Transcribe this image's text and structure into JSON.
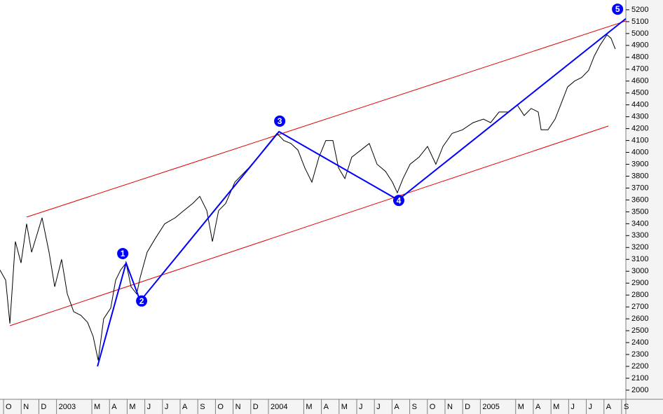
{
  "chart_data": {
    "type": "line",
    "x": [
      -0.2,
      0.12,
      0.36,
      0.67,
      0.99,
      1.31,
      1.59,
      2.18,
      2.58,
      2.9,
      3.29,
      3.61,
      3.97,
      4.37,
      4.76,
      5.08,
      5.36,
      5.67,
      6.07,
      6.35,
      6.63,
      6.94,
      7.22,
      7.54,
      7.74,
      8.13,
      8.61,
      9.13,
      9.72,
      10.2,
      10.71,
      11.11,
      11.51,
      11.83,
      12.18,
      12.58,
      13.1,
      13.49,
      13.89,
      14.4,
      14.88,
      15.48,
      15.87,
      16.27,
      16.67,
      17.06,
      17.46,
      17.86,
      18.25,
      18.65,
      18.97,
      19.33,
      19.72,
      20.24,
      20.71,
      21.15,
      21.63,
      22.02,
      22.3,
      22.62,
      23.02,
      23.53,
      24.01,
      24.48,
      24.88,
      25.4,
      25.99,
      26.59,
      27.18,
      27.58,
      28.06,
      28.57,
      29.09,
      29.48,
      29.88,
      30.28,
      30.44,
      30.83,
      31.23,
      31.55,
      31.94,
      32.34,
      32.74,
      33.13,
      33.45,
      33.77,
      34.17,
      34.4,
      34.64
    ],
    "series": [
      {
        "color": "#000000",
        "values": [
          3010,
          2925,
          2560,
          3250,
          3070,
          3400,
          3160,
          3450,
          3160,
          2870,
          3100,
          2810,
          2660,
          2630,
          2570,
          2450,
          2250,
          2600,
          2690,
          2925,
          3010,
          3070,
          2870,
          2810,
          2950,
          3160,
          3280,
          3400,
          3450,
          3510,
          3570,
          3630,
          3510,
          3250,
          3510,
          3570,
          3750,
          3810,
          3870,
          3960,
          4050,
          4160,
          4100,
          4075,
          4020,
          3870,
          3750,
          3960,
          4100,
          4100,
          3870,
          3780,
          3960,
          4020,
          4075,
          3900,
          3840,
          3750,
          3660,
          3780,
          3900,
          3960,
          4050,
          3900,
          4050,
          4160,
          4190,
          4250,
          4280,
          4250,
          4340,
          4340,
          4400,
          4310,
          4370,
          4340,
          4190,
          4190,
          4280,
          4400,
          4550,
          4600,
          4630,
          4690,
          4810,
          4900,
          4990,
          4960,
          4870
        ]
      }
    ],
    "wave": {
      "color": "#0000ff",
      "x": [
        5.32,
        6.94,
        7.74,
        15.6,
        22.34,
        35.24
      ],
      "values": [
        2200,
        3070,
        2750,
        4175,
        3600,
        5125
      ]
    },
    "wave_labels": [
      {
        "label": "1",
        "x": 6.75,
        "value": 3149
      },
      {
        "label": "2",
        "x": 7.82,
        "value": 2750
      },
      {
        "label": "3",
        "x": 15.64,
        "value": 4263
      },
      {
        "label": "4",
        "x": 22.38,
        "value": 3596
      },
      {
        "label": "5",
        "x": 34.77,
        "value": 5205
      }
    ],
    "channel": [
      {
        "color": "#e00000",
        "x": [
          1.31,
          35.24
        ],
        "values": [
          3456,
          5106
        ]
      },
      {
        "color": "#e00000",
        "x": [
          0.36,
          34.25
        ],
        "values": [
          2542,
          4222
        ]
      }
    ],
    "xlim": [
      -0.2,
      35.24
    ],
    "ylim": [
      1923,
      5282
    ],
    "yticks": [
      2000,
      2100,
      2200,
      2300,
      2400,
      2500,
      2600,
      2700,
      2800,
      2900,
      3000,
      3100,
      3200,
      3300,
      3400,
      3500,
      3600,
      3700,
      3800,
      3900,
      4000,
      4100,
      4200,
      4300,
      4400,
      4500,
      4600,
      4700,
      4800,
      4900,
      5000,
      5100,
      5200
    ],
    "xticks": [
      {
        "value": 0,
        "label": "O"
      },
      {
        "value": 1,
        "label": "N"
      },
      {
        "value": 2,
        "label": "D"
      },
      {
        "value": 3,
        "label": "2003"
      },
      {
        "value": 5,
        "label": "M"
      },
      {
        "value": 6,
        "label": "A"
      },
      {
        "value": 7,
        "label": "M"
      },
      {
        "value": 8,
        "label": "J"
      },
      {
        "value": 9,
        "label": "J"
      },
      {
        "value": 10,
        "label": "A"
      },
      {
        "value": 11,
        "label": "S"
      },
      {
        "value": 12,
        "label": "O"
      },
      {
        "value": 13,
        "label": "N"
      },
      {
        "value": 14,
        "label": "D"
      },
      {
        "value": 15,
        "label": "2004"
      },
      {
        "value": 17,
        "label": "M"
      },
      {
        "value": 18,
        "label": "A"
      },
      {
        "value": 19,
        "label": "M"
      },
      {
        "value": 20,
        "label": "J"
      },
      {
        "value": 21,
        "label": "J"
      },
      {
        "value": 22,
        "label": "A"
      },
      {
        "value": 23,
        "label": "S"
      },
      {
        "value": 24,
        "label": "O"
      },
      {
        "value": 25,
        "label": "N"
      },
      {
        "value": 26,
        "label": "D"
      },
      {
        "value": 27,
        "label": "2005"
      },
      {
        "value": 29,
        "label": "M"
      },
      {
        "value": 30,
        "label": "A"
      },
      {
        "value": 31,
        "label": "M"
      },
      {
        "value": 32,
        "label": "J"
      },
      {
        "value": 33,
        "label": "J"
      },
      {
        "value": 34,
        "label": "A"
      },
      {
        "value": 35,
        "label": "S"
      }
    ]
  }
}
